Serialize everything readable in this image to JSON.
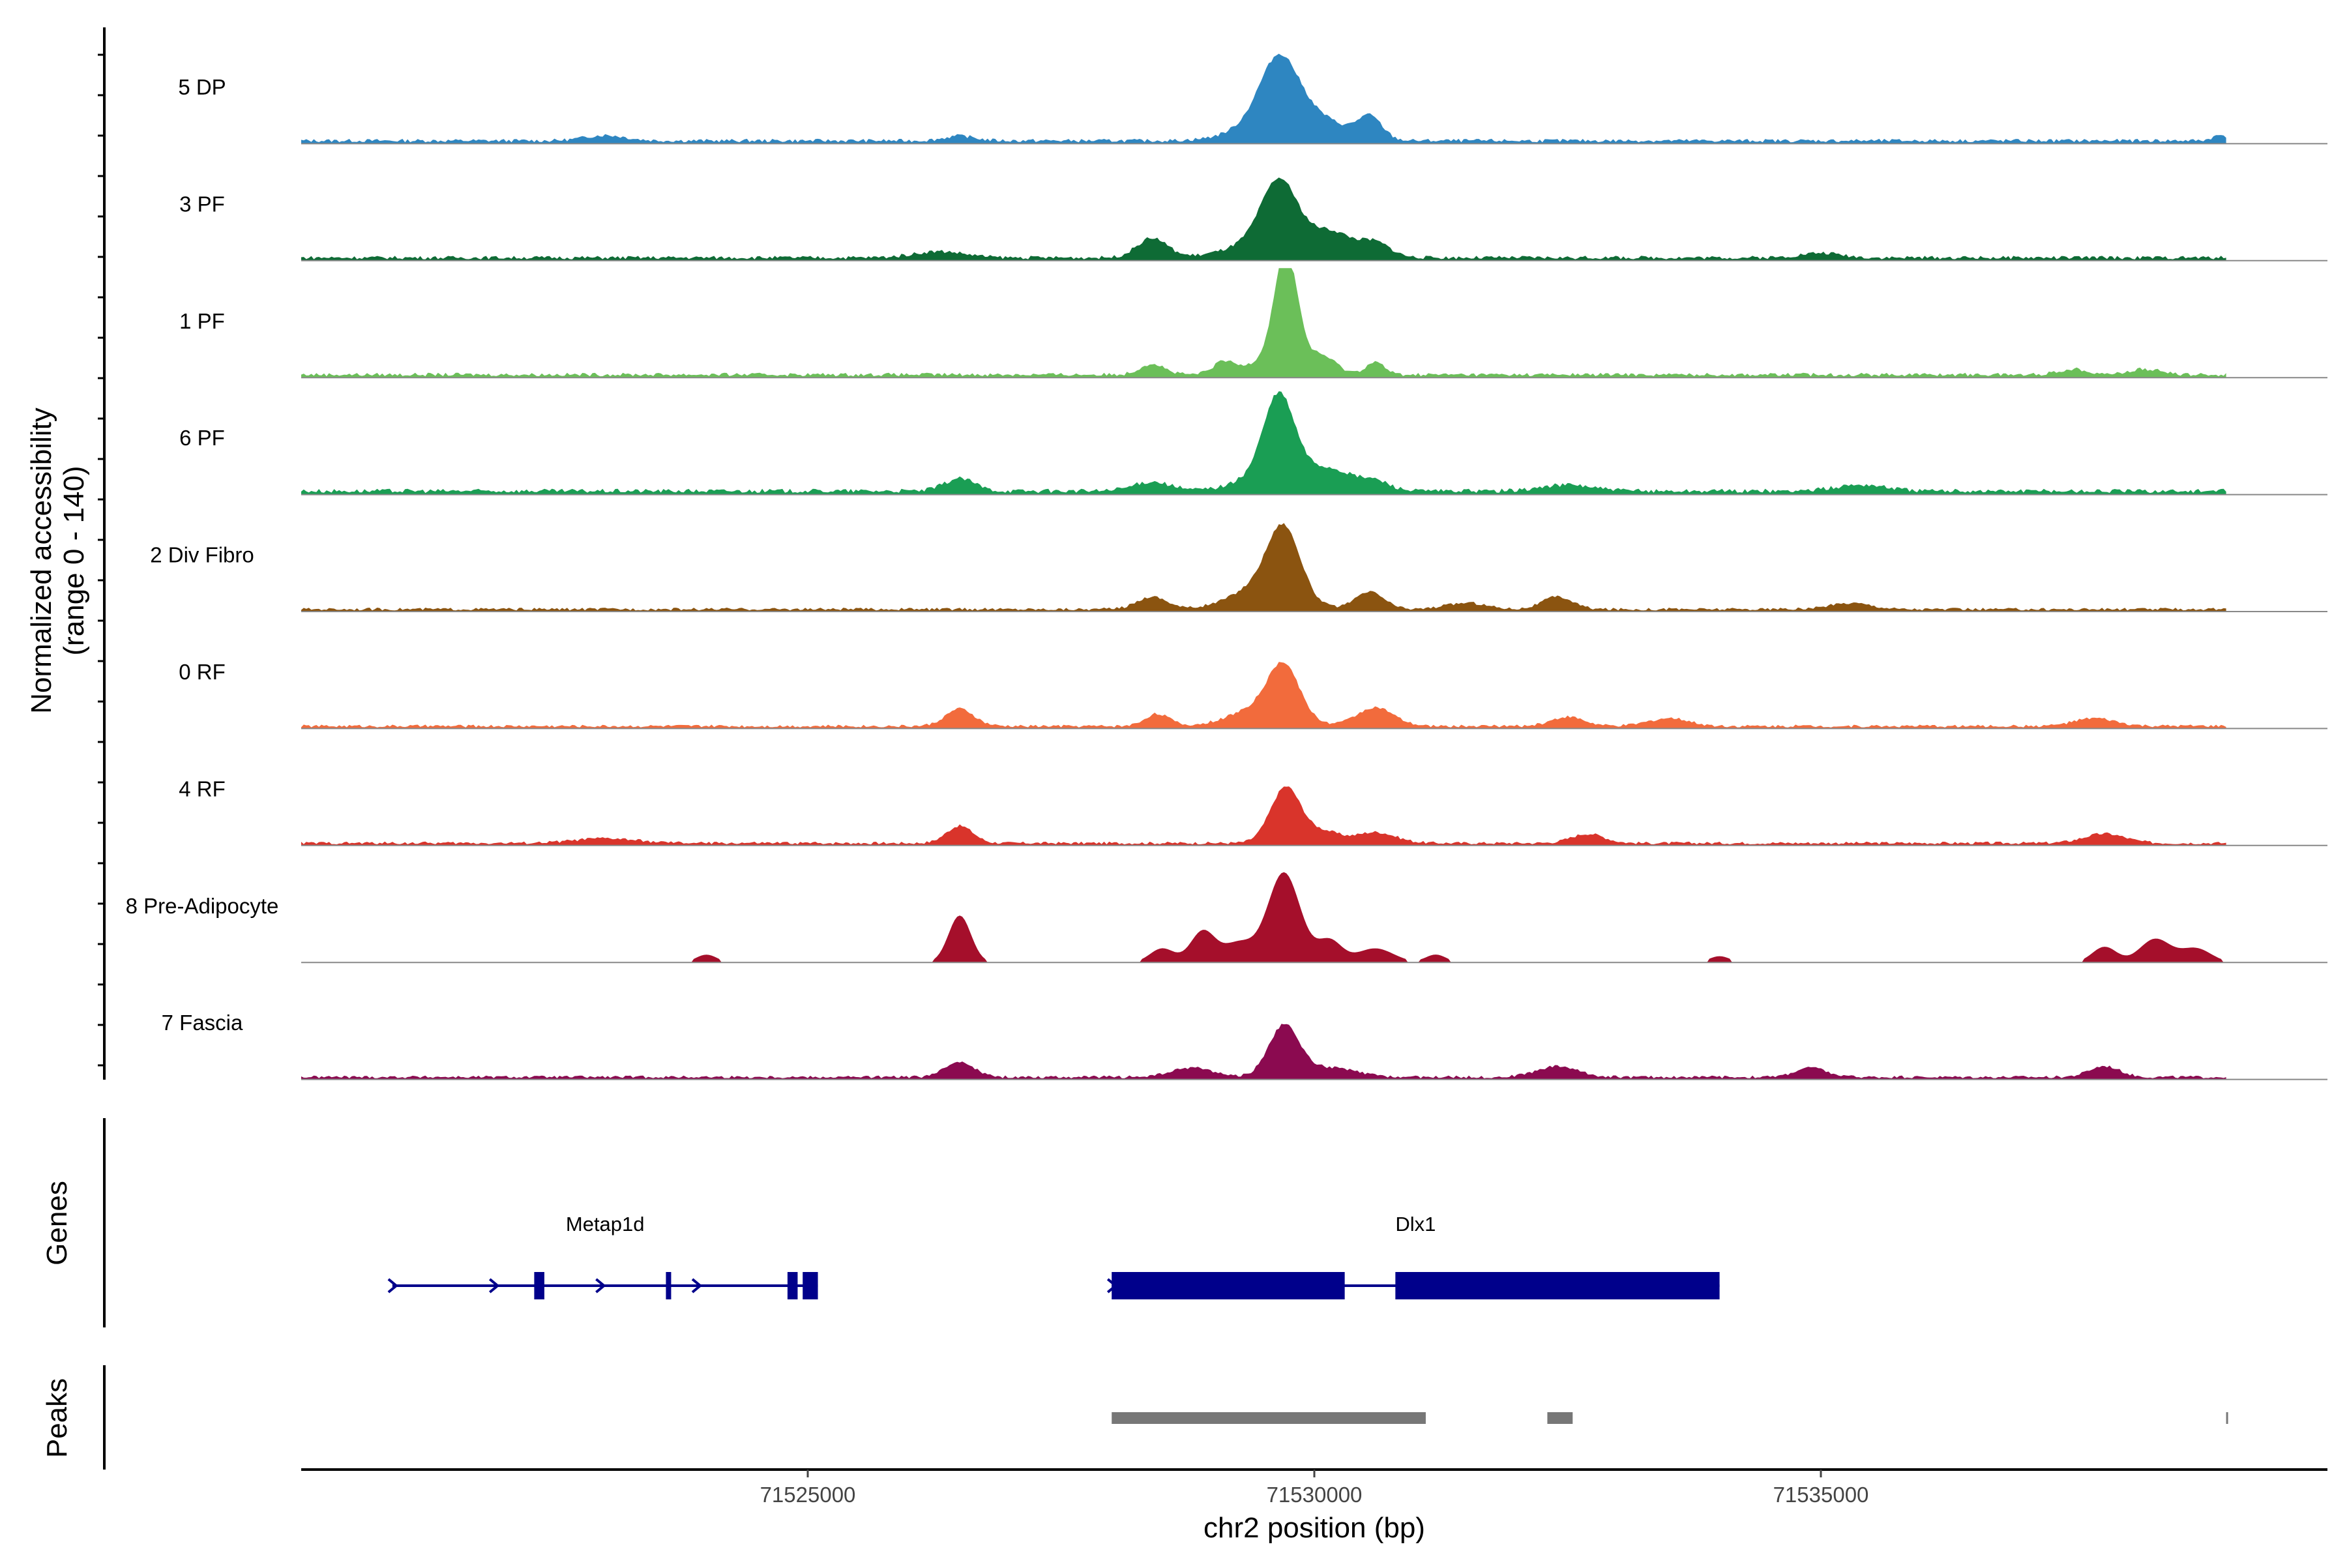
{
  "chart_data": {
    "type": "area",
    "ylabel_line1": "Normalized accessibility",
    "ylabel_line2": "(range 0 - 140)",
    "ylim": [
      0,
      140
    ],
    "xlabel": "chr2 position (bp)",
    "xlim": [
      71520000,
      71540000
    ],
    "x_ticks": [
      71525000,
      71530000,
      71535000
    ],
    "x_tick_labels": [
      "71525000",
      "71530000",
      "71535000"
    ],
    "tracks": [
      {
        "name": "5 DP",
        "color": "#2E86C1",
        "baseline": 5,
        "peaks": [
          [
            71529650,
            70,
            180
          ],
          [
            71529700,
            40,
            350
          ],
          [
            71530550,
            28,
            120
          ],
          [
            71530150,
            10,
            250
          ],
          [
            71523000,
            7,
            200
          ],
          [
            71526500,
            6,
            150
          ],
          [
            71538950,
            7,
            80
          ]
        ]
      },
      {
        "name": "3 PF",
        "color": "#0E6B35",
        "baseline": 5,
        "peaks": [
          [
            71529650,
            72,
            170
          ],
          [
            71529700,
            30,
            400
          ],
          [
            71528400,
            25,
            150
          ],
          [
            71530200,
            20,
            180
          ],
          [
            71530600,
            18,
            150
          ],
          [
            71526300,
            8,
            250
          ],
          [
            71535000,
            6,
            200
          ]
        ]
      },
      {
        "name": "1 PF",
        "color": "#6BBF59",
        "baseline": 5,
        "peaks": [
          [
            71529720,
            138,
            110
          ],
          [
            71529700,
            25,
            300
          ],
          [
            71528400,
            14,
            120
          ],
          [
            71529100,
            14,
            100
          ],
          [
            71530100,
            14,
            120
          ],
          [
            71530600,
            16,
            90
          ],
          [
            71537500,
            7,
            150
          ],
          [
            71538200,
            7,
            150
          ]
        ]
      },
      {
        "name": "6 PF",
        "color": "#1A9E54",
        "baseline": 6,
        "peaks": [
          [
            71529650,
            98,
            150
          ],
          [
            71529700,
            28,
            350
          ],
          [
            71526500,
            16,
            150
          ],
          [
            71528400,
            12,
            180
          ],
          [
            71530200,
            18,
            200
          ],
          [
            71530600,
            12,
            150
          ],
          [
            71532500,
            8,
            250
          ],
          [
            71535400,
            8,
            250
          ]
        ]
      },
      {
        "name": "2 Div Fibro",
        "color": "#8B5410",
        "baseline": 4,
        "peaks": [
          [
            71529700,
            85,
            160
          ],
          [
            71529500,
            30,
            300
          ],
          [
            71530550,
            22,
            140
          ],
          [
            71528400,
            16,
            150
          ],
          [
            71532400,
            16,
            150
          ],
          [
            71531500,
            8,
            200
          ],
          [
            71535300,
            8,
            200
          ]
        ]
      },
      {
        "name": "0 RF",
        "color": "#F26B3C",
        "baseline": 4,
        "peaks": [
          [
            71529700,
            62,
            150
          ],
          [
            71529500,
            25,
            300
          ],
          [
            71526500,
            22,
            140
          ],
          [
            71528450,
            16,
            120
          ],
          [
            71530600,
            24,
            180
          ],
          [
            71532500,
            12,
            160
          ],
          [
            71533500,
            10,
            200
          ],
          [
            71537700,
            10,
            200
          ]
        ]
      },
      {
        "name": "4 RF",
        "color": "#D9342B",
        "baseline": 4,
        "peaks": [
          [
            71529720,
            72,
            150
          ],
          [
            71526500,
            22,
            130
          ],
          [
            71530100,
            14,
            150
          ],
          [
            71530600,
            14,
            200
          ],
          [
            71532700,
            12,
            160
          ],
          [
            71537800,
            12,
            200
          ],
          [
            71523000,
            6,
            300
          ]
        ]
      },
      {
        "name": "8 Pre-Adipocyte",
        "color": "#A50F2B",
        "baseline": 0,
        "peaks": [
          [
            71529700,
            115,
            160
          ],
          [
            71526500,
            60,
            110
          ],
          [
            71528500,
            18,
            120
          ],
          [
            71528900,
            40,
            120
          ],
          [
            71529250,
            25,
            150
          ],
          [
            71530150,
            28,
            120
          ],
          [
            71530600,
            18,
            180
          ],
          [
            71537800,
            20,
            120
          ],
          [
            71538300,
            30,
            150
          ],
          [
            71538700,
            18,
            150
          ],
          [
            71524000,
            10,
            100
          ],
          [
            71531200,
            10,
            100
          ],
          [
            71534000,
            8,
            100
          ]
        ]
      },
      {
        "name": "7 Fascia",
        "color": "#8B0A50",
        "baseline": 4,
        "peaks": [
          [
            71529700,
            65,
            150
          ],
          [
            71526500,
            20,
            140
          ],
          [
            71528800,
            12,
            200
          ],
          [
            71530150,
            12,
            250
          ],
          [
            71532400,
            14,
            200
          ],
          [
            71534900,
            12,
            150
          ],
          [
            71537800,
            14,
            150
          ]
        ]
      }
    ],
    "genes": [
      {
        "name": "Metap1d",
        "start": 71520900,
        "end": 71525100,
        "strand": "+",
        "exons": [
          [
            71522300,
            71522400
          ],
          [
            71523600,
            71523650
          ],
          [
            71524800,
            71524900
          ],
          [
            71524950,
            71525100
          ]
        ],
        "arrows": [
          71520900,
          71521900,
          71522950,
          71523900
        ]
      },
      {
        "name": "Dlx1",
        "start": 71528000,
        "end": 71534000,
        "strand": "+",
        "exons": [
          [
            71528000,
            71530300
          ],
          [
            71530800,
            71534000
          ]
        ],
        "arrows": [
          71528000
        ]
      }
    ],
    "genes_label": "Genes",
    "peaks_label": "Peaks",
    "peak_regions": [
      [
        71528000,
        71531100
      ],
      [
        71532300,
        71532550
      ],
      [
        71539000,
        71539010
      ]
    ],
    "peak_color": "#777777",
    "gene_color": "#00008B"
  }
}
